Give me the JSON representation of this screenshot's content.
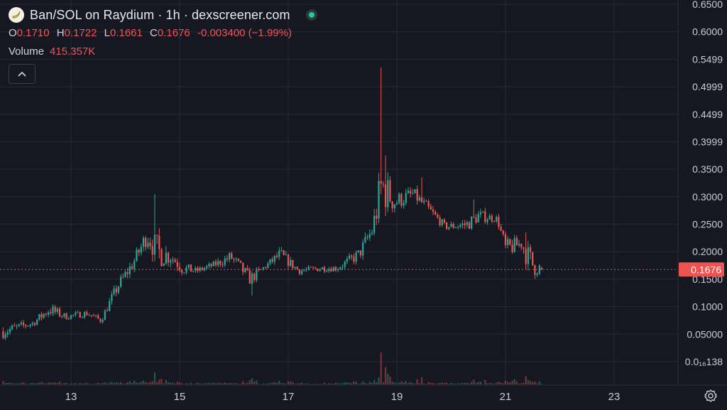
{
  "header": {
    "title": "Ban/SOL on Raydium · 1h · dexscreener.com",
    "ohlc": {
      "o_label": "O",
      "o": "0.1710",
      "h_label": "H",
      "h": "0.1722",
      "l_label": "L",
      "l": "0.1661",
      "c_label": "C",
      "c": "0.1676",
      "change": "-0.003400 (−1.99%)"
    },
    "volume_label": "Volume",
    "volume_value": "415.357K"
  },
  "colors": {
    "up": "#26a69a",
    "down": "#ef5350",
    "last_price": "#ef5350",
    "background": "#161821",
    "grid": "#262936"
  },
  "icons": {
    "logo": "banana-logo-icon",
    "status": "live-status-dot-icon",
    "collapse": "chevron-up-icon",
    "settings": "gear-icon"
  },
  "chart_data": {
    "type": "candlestick",
    "interval": "1h",
    "ylim": [
      0.0,
      0.65
    ],
    "y_ticks": [
      "0.6500",
      "0.6000",
      "0.5499",
      "0.4999",
      "0.4499",
      "0.3999",
      "0.3500",
      "0.3000",
      "0.2500",
      "0.2000",
      "0.1500",
      "0.1000",
      "0.05000",
      "0.0₁₆138"
    ],
    "y_tick_values": [
      0.65,
      0.6,
      0.55,
      0.5,
      0.45,
      0.4,
      0.35,
      0.3,
      0.25,
      0.2,
      0.15,
      0.1,
      0.05,
      0.0
    ],
    "x_ticks": [
      "13",
      "15",
      "17",
      "19",
      "21",
      "23"
    ],
    "x_tick_values": [
      13,
      15,
      17,
      19,
      21,
      23
    ],
    "xlim": [
      11.75,
      24.3
    ],
    "last_price": 0.1676,
    "last_price_label": "0.1676",
    "grid": true,
    "keypoints": [
      [
        11.75,
        0.055,
        2
      ],
      [
        12.3,
        0.07,
        1
      ],
      [
        12.6,
        0.095,
        2
      ],
      [
        12.9,
        0.082,
        1
      ],
      [
        13.3,
        0.088,
        1
      ],
      [
        13.55,
        0.075,
        1
      ],
      [
        13.85,
        0.135,
        2
      ],
      [
        14.15,
        0.18,
        2
      ],
      [
        14.4,
        0.23,
        3
      ],
      [
        14.6,
        0.2,
        5
      ],
      [
        14.85,
        0.19,
        2
      ],
      [
        15.05,
        0.17,
        2
      ],
      [
        15.3,
        0.165,
        1
      ],
      [
        15.6,
        0.175,
        1
      ],
      [
        15.95,
        0.19,
        2
      ],
      [
        16.3,
        0.15,
        2
      ],
      [
        16.6,
        0.175,
        1
      ],
      [
        16.85,
        0.195,
        2
      ],
      [
        17.2,
        0.165,
        1
      ],
      [
        17.6,
        0.17,
        1
      ],
      [
        17.9,
        0.17,
        1
      ],
      [
        18.3,
        0.195,
        2
      ],
      [
        18.55,
        0.24,
        3
      ],
      [
        18.72,
        0.32,
        8
      ],
      [
        18.95,
        0.29,
        3
      ],
      [
        19.3,
        0.305,
        2
      ],
      [
        19.55,
        0.28,
        2
      ],
      [
        19.9,
        0.245,
        1
      ],
      [
        20.3,
        0.25,
        2
      ],
      [
        20.5,
        0.265,
        2
      ],
      [
        20.85,
        0.26,
        1
      ],
      [
        21.0,
        0.205,
        3
      ],
      [
        21.3,
        0.215,
        2
      ],
      [
        21.45,
        0.18,
        5
      ],
      [
        21.7,
        0.167,
        1
      ]
    ],
    "spikes": [
      {
        "x": 14.55,
        "high": 0.305
      },
      {
        "x": 18.72,
        "high": 0.535
      },
      {
        "x": 18.8,
        "high": 0.375
      },
      {
        "x": 19.45,
        "high": 0.335
      },
      {
        "x": 20.42,
        "high": 0.295
      },
      {
        "x": 21.38,
        "high": 0.235
      },
      {
        "x": 16.33,
        "low": 0.12
      }
    ],
    "volume_ylim": [
      0,
      520000
    ]
  },
  "footer": {
    "settings_title": "Chart settings"
  }
}
